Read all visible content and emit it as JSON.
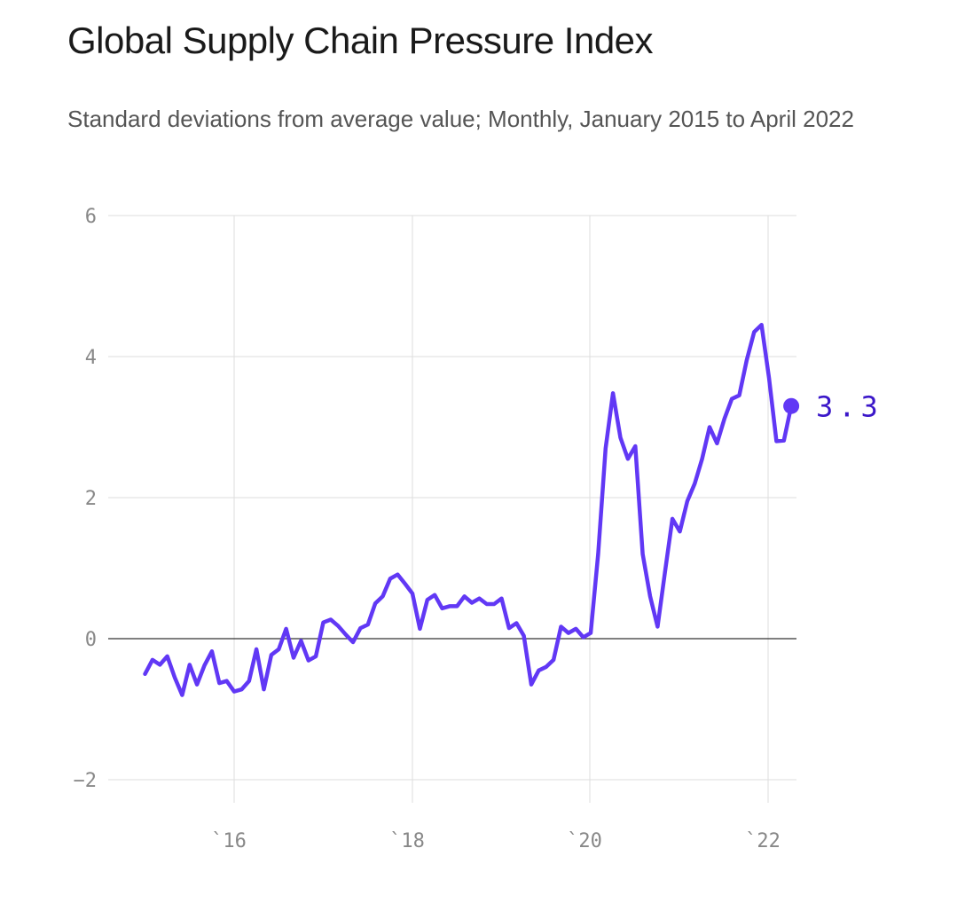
{
  "chart_data": {
    "type": "line",
    "title": "Global Supply Chain Pressure Index",
    "subtitle": "Standard deviations from average value; Monthly, January 2015 to April 2022",
    "xlabel": "",
    "ylabel": "",
    "x_ticks": [
      "`16",
      "`18",
      "`20",
      "`22"
    ],
    "y_ticks": [
      "6",
      "4",
      "2",
      "0",
      "−2"
    ],
    "ylim": [
      -2,
      6
    ],
    "grid": true,
    "end_label": "3.3",
    "colors": {
      "line": "#6138f5",
      "label": "#3b17c9",
      "grid": "#dddddd",
      "zero": "#333333"
    },
    "series": [
      {
        "x": [
          "2015-01",
          "2015-02",
          "2015-03",
          "2015-04",
          "2015-05",
          "2015-06",
          "2015-07",
          "2015-08",
          "2015-09",
          "2015-10",
          "2015-11",
          "2015-12",
          "2016-01",
          "2016-02",
          "2016-03",
          "2016-04",
          "2016-05",
          "2016-06",
          "2016-07",
          "2016-08",
          "2016-09",
          "2016-10",
          "2016-11",
          "2016-12",
          "2017-01",
          "2017-02",
          "2017-03",
          "2017-04",
          "2017-05",
          "2017-06",
          "2017-07",
          "2017-08",
          "2017-09",
          "2017-10",
          "2017-11",
          "2017-12",
          "2018-01",
          "2018-02",
          "2018-03",
          "2018-04",
          "2018-05",
          "2018-06",
          "2018-07",
          "2018-08",
          "2018-09",
          "2018-10",
          "2018-11",
          "2018-12",
          "2019-01",
          "2019-02",
          "2019-03",
          "2019-04",
          "2019-05",
          "2019-06",
          "2019-07",
          "2019-08",
          "2019-09",
          "2019-10",
          "2019-11",
          "2019-12",
          "2020-01",
          "2020-02",
          "2020-03",
          "2020-04",
          "2020-05",
          "2020-06",
          "2020-07",
          "2020-08",
          "2020-09",
          "2020-10",
          "2020-11",
          "2020-12",
          "2021-01",
          "2021-02",
          "2021-03",
          "2021-04",
          "2021-05",
          "2021-06",
          "2021-07",
          "2021-08",
          "2021-09",
          "2021-10",
          "2021-11",
          "2021-12",
          "2022-01",
          "2022-02",
          "2022-03",
          "2022-04"
        ],
        "values": [
          -0.5,
          -0.3,
          -0.37,
          -0.25,
          -0.55,
          -0.8,
          -0.37,
          -0.65,
          -0.38,
          -0.18,
          -0.63,
          -0.6,
          -0.75,
          -0.72,
          -0.6,
          -0.15,
          -0.72,
          -0.23,
          -0.15,
          0.14,
          -0.27,
          -0.03,
          -0.31,
          -0.25,
          0.23,
          0.27,
          0.18,
          0.06,
          -0.05,
          0.15,
          0.2,
          0.5,
          0.6,
          0.85,
          0.91,
          0.78,
          0.64,
          0.14,
          0.55,
          0.62,
          0.43,
          0.46,
          0.46,
          0.6,
          0.51,
          0.57,
          0.49,
          0.49,
          0.57,
          0.15,
          0.22,
          0.04,
          -0.65,
          -0.45,
          -0.4,
          -0.3,
          0.17,
          0.08,
          0.14,
          0.02,
          0.08,
          1.2,
          2.7,
          3.48,
          2.85,
          2.55,
          2.73,
          1.2,
          0.6,
          0.17,
          0.95,
          1.7,
          1.52,
          1.95,
          2.2,
          2.55,
          3.0,
          2.77,
          3.12,
          3.4,
          3.45,
          3.95,
          4.35,
          4.45,
          3.7,
          2.8,
          2.81,
          3.3
        ]
      }
    ]
  }
}
